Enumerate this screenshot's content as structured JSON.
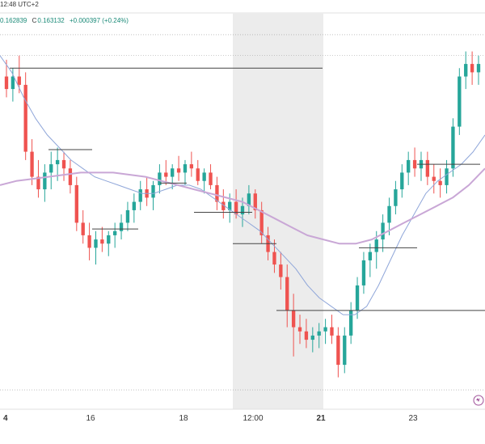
{
  "header": {
    "time_fragment": "12:48 UTC+2",
    "ohlc": {
      "h_label": "",
      "h_value": "0.162839",
      "c_label": "C",
      "c_value": "0.163132",
      "change": "+0.000397 (+0.24%)"
    }
  },
  "colors": {
    "up": "#26a69a",
    "down": "#ef5350",
    "ma_fast": "#8fa6d9",
    "ma_slow": "#c9a7d6",
    "level": "#444444",
    "session_band": "#ececec"
  },
  "chart_data": {
    "type": "candlestick",
    "x_ticks": [
      {
        "label": "4",
        "bold": true
      },
      {
        "label": "16",
        "bold": false
      },
      {
        "label": "18",
        "bold": false
      },
      {
        "label": "12:00",
        "bold": false
      },
      {
        "label": "21",
        "bold": true
      },
      {
        "label": "23",
        "bold": false
      }
    ],
    "price_scale": {
      "min": 0.1485,
      "max": 0.1665
    },
    "candles": [
      [
        0.164,
        0.1648,
        0.163,
        0.1634
      ],
      [
        0.1634,
        0.1644,
        0.1628,
        0.164
      ],
      [
        0.164,
        0.165,
        0.1632,
        0.1636
      ],
      [
        0.1636,
        0.1642,
        0.16,
        0.1604
      ],
      [
        0.1604,
        0.161,
        0.1588,
        0.1592
      ],
      [
        0.1592,
        0.16,
        0.1582,
        0.1586
      ],
      [
        0.1586,
        0.1598,
        0.158,
        0.1594
      ],
      [
        0.1594,
        0.1604,
        0.1586,
        0.1598
      ],
      [
        0.1598,
        0.1606,
        0.159,
        0.16
      ],
      [
        0.16,
        0.1604,
        0.159,
        0.1596
      ],
      [
        0.1596,
        0.16,
        0.1584,
        0.1588
      ],
      [
        0.1588,
        0.1592,
        0.1566,
        0.157
      ],
      [
        0.157,
        0.1576,
        0.156,
        0.1564
      ],
      [
        0.1564,
        0.157,
        0.1552,
        0.1558
      ],
      [
        0.1558,
        0.1566,
        0.155,
        0.1562
      ],
      [
        0.1562,
        0.1568,
        0.1556,
        0.156
      ],
      [
        0.156,
        0.1566,
        0.1554,
        0.1564
      ],
      [
        0.1564,
        0.157,
        0.1558,
        0.1566
      ],
      [
        0.1566,
        0.1574,
        0.1562,
        0.157
      ],
      [
        0.157,
        0.158,
        0.1566,
        0.1576
      ],
      [
        0.1576,
        0.1584,
        0.157,
        0.158
      ],
      [
        0.158,
        0.159,
        0.1576,
        0.1586
      ],
      [
        0.1586,
        0.1592,
        0.1578,
        0.1582
      ],
      [
        0.1582,
        0.159,
        0.1576,
        0.1588
      ],
      [
        0.1588,
        0.1598,
        0.1584,
        0.1594
      ],
      [
        0.1594,
        0.16,
        0.1588,
        0.1592
      ],
      [
        0.1592,
        0.1598,
        0.1586,
        0.1596
      ],
      [
        0.1596,
        0.1602,
        0.159,
        0.1594
      ],
      [
        0.1594,
        0.16,
        0.1588,
        0.1598
      ],
      [
        0.1598,
        0.1604,
        0.1592,
        0.1596
      ],
      [
        0.1596,
        0.16,
        0.1588,
        0.159
      ],
      [
        0.159,
        0.1596,
        0.1584,
        0.1594
      ],
      [
        0.1594,
        0.1598,
        0.1586,
        0.1588
      ],
      [
        0.1588,
        0.1592,
        0.1576,
        0.158
      ],
      [
        0.158,
        0.1586,
        0.1572,
        0.1576
      ],
      [
        0.1576,
        0.1584,
        0.157,
        0.158
      ],
      [
        0.158,
        0.1586,
        0.1572,
        0.1574
      ],
      [
        0.1574,
        0.1582,
        0.1568,
        0.1578
      ],
      [
        0.1578,
        0.1588,
        0.1574,
        0.1584
      ],
      [
        0.1584,
        0.1586,
        0.1572,
        0.1576
      ],
      [
        0.1576,
        0.158,
        0.156,
        0.1564
      ],
      [
        0.1564,
        0.1568,
        0.1552,
        0.1556
      ],
      [
        0.1556,
        0.1562,
        0.1546,
        0.155
      ],
      [
        0.155,
        0.1556,
        0.1538,
        0.1544
      ],
      [
        0.1544,
        0.155,
        0.152,
        0.1528
      ],
      [
        0.1528,
        0.1536,
        0.1506,
        0.152
      ],
      [
        0.152,
        0.1526,
        0.1512,
        0.1518
      ],
      [
        0.1518,
        0.1524,
        0.151,
        0.1514
      ],
      [
        0.1514,
        0.152,
        0.1508,
        0.1516
      ],
      [
        0.1516,
        0.1522,
        0.151,
        0.1518
      ],
      [
        0.1518,
        0.1524,
        0.1512,
        0.152
      ],
      [
        0.152,
        0.1526,
        0.1512,
        0.1516
      ],
      [
        0.1516,
        0.152,
        0.1496,
        0.1502
      ],
      [
        0.1502,
        0.152,
        0.1498,
        0.1516
      ],
      [
        0.1516,
        0.1532,
        0.1512,
        0.1528
      ],
      [
        0.1528,
        0.1544,
        0.1524,
        0.154
      ],
      [
        0.154,
        0.1556,
        0.1536,
        0.1552
      ],
      [
        0.1552,
        0.156,
        0.1544,
        0.1556
      ],
      [
        0.1556,
        0.1566,
        0.1548,
        0.1562
      ],
      [
        0.1562,
        0.1574,
        0.1556,
        0.157
      ],
      [
        0.157,
        0.1582,
        0.1564,
        0.1578
      ],
      [
        0.1578,
        0.159,
        0.1574,
        0.1586
      ],
      [
        0.1586,
        0.1598,
        0.1582,
        0.1594
      ],
      [
        0.1594,
        0.1604,
        0.1588,
        0.16
      ],
      [
        0.16,
        0.1606,
        0.1592,
        0.1596
      ],
      [
        0.1596,
        0.1604,
        0.159,
        0.16
      ],
      [
        0.16,
        0.1604,
        0.1588,
        0.1592
      ],
      [
        0.1592,
        0.1598,
        0.1584,
        0.159
      ],
      [
        0.159,
        0.1596,
        0.1582,
        0.1588
      ],
      [
        0.1588,
        0.16,
        0.1584,
        0.1596
      ],
      [
        0.1596,
        0.162,
        0.1592,
        0.1616
      ],
      [
        0.1616,
        0.1644,
        0.1612,
        0.164
      ],
      [
        0.164,
        0.1652,
        0.1634,
        0.1646
      ],
      [
        0.1646,
        0.1652,
        0.1636,
        0.1642
      ],
      [
        0.1642,
        0.165,
        0.1636,
        0.1646
      ]
    ],
    "series": [
      {
        "values": [
          0.165,
          0.1642,
          0.163,
          0.162,
          0.1612,
          0.1606,
          0.16,
          0.1596,
          0.1592,
          0.159,
          0.1588,
          0.1586,
          0.1584,
          0.1584,
          0.1586,
          0.1588,
          0.1588,
          0.1586,
          0.1582,
          0.1578,
          0.1574,
          0.157,
          0.1566,
          0.156,
          0.1554,
          0.1548,
          0.154,
          0.1534,
          0.153,
          0.1526,
          0.1526,
          0.153,
          0.154,
          0.1552,
          0.1564,
          0.1574,
          0.1584,
          0.159,
          0.1594,
          0.1598,
          0.1604,
          0.1612
        ]
      },
      {
        "values": [
          0.1588,
          0.159,
          0.1591,
          0.1592,
          0.1593,
          0.1594,
          0.1594,
          0.1594,
          0.1593,
          0.1592,
          0.159,
          0.1588,
          0.1586,
          0.1584,
          0.1582,
          0.158,
          0.1576,
          0.1572,
          0.1568,
          0.1564,
          0.1562,
          0.156,
          0.156,
          0.1562,
          0.1566,
          0.157,
          0.1574,
          0.1578,
          0.1582,
          0.1588,
          0.1596
        ]
      }
    ],
    "levels": [
      {
        "price": 0.1644,
        "x_from": 0.02,
        "x_to": 0.665
      },
      {
        "price": 0.1605,
        "x_from": 0.1,
        "x_to": 0.19
      },
      {
        "price": 0.1589,
        "x_from": 0.33,
        "x_to": 0.385
      },
      {
        "price": 0.1575,
        "x_from": 0.4,
        "x_to": 0.52
      },
      {
        "price": 0.1567,
        "x_from": 0.19,
        "x_to": 0.285
      },
      {
        "price": 0.156,
        "x_from": 0.48,
        "x_to": 0.57
      },
      {
        "price": 0.1558,
        "x_from": 0.74,
        "x_to": 0.86
      },
      {
        "price": 0.1528,
        "x_from": 0.57,
        "x_to": 0.76
      },
      {
        "price": 0.1598,
        "x_from": 0.86,
        "x_to": 0.99
      },
      {
        "price": 0.1528,
        "x_from": 0.76,
        "x_to": 1.0
      }
    ],
    "dotted_levels": [
      0.166,
      0.165,
      0.149
    ],
    "session_band": {
      "from_label": "12:00",
      "to_label": "21"
    }
  },
  "icons": {
    "watermark": "tradingview-logo-icon"
  }
}
